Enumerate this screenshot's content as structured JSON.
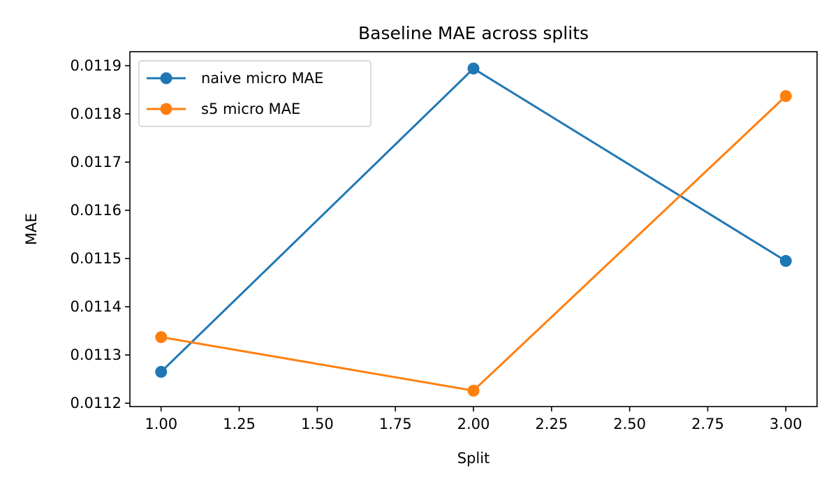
{
  "chart_data": {
    "type": "line",
    "title": "Baseline MAE across splits",
    "xlabel": "Split",
    "ylabel": "MAE",
    "x": [
      1,
      2,
      3
    ],
    "xlim": [
      0.9,
      3.1
    ],
    "ylim": [
      0.011193,
      0.011929
    ],
    "xticks": [
      1.0,
      1.25,
      1.5,
      1.75,
      2.0,
      2.25,
      2.5,
      2.75,
      3.0
    ],
    "xtick_labels": [
      "1.00",
      "1.25",
      "1.50",
      "1.75",
      "2.00",
      "2.25",
      "2.50",
      "2.75",
      "3.00"
    ],
    "yticks": [
      0.0112,
      0.0113,
      0.0114,
      0.0115,
      0.0116,
      0.0117,
      0.0118,
      0.0119
    ],
    "ytick_labels": [
      "0.0112",
      "0.0113",
      "0.0114",
      "0.0115",
      "0.0116",
      "0.0117",
      "0.0118",
      "0.0119"
    ],
    "grid": false,
    "legend_position": "upper-left",
    "series": [
      {
        "name": "naive micro MAE",
        "color": "#1f77b4",
        "values": [
          0.011265,
          0.011894,
          0.011495
        ]
      },
      {
        "name": "s5 micro MAE",
        "color": "#ff7f0e",
        "values": [
          0.011337,
          0.011226,
          0.011837
        ]
      }
    ]
  }
}
